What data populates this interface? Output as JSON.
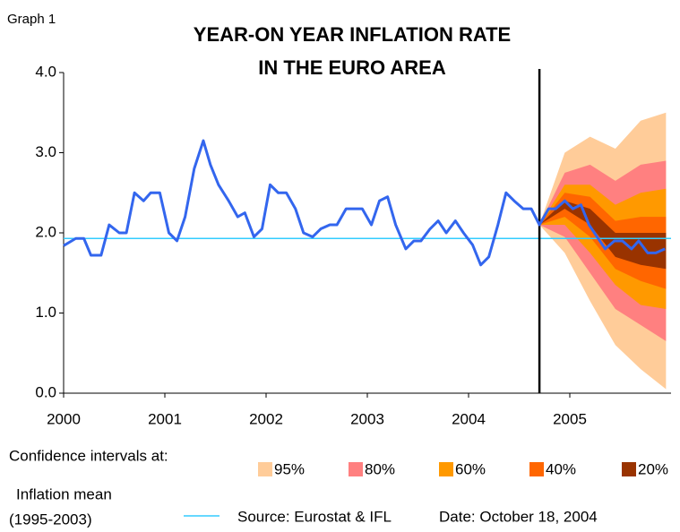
{
  "chart_data": {
    "type": "line",
    "label": "Graph 1",
    "title": [
      "YEAR-ON YEAR INFLATION RATE",
      "IN THE EURO AREA"
    ],
    "xlim": [
      2000,
      2006
    ],
    "xticks": [
      2000,
      2001,
      2002,
      2003,
      2004,
      2005
    ],
    "ylim": [
      0,
      4
    ],
    "yticks": [
      {
        "value": 0,
        "label": "0.0"
      },
      {
        "value": 1,
        "label": "1.0"
      },
      {
        "value": 2,
        "label": "2.0"
      },
      {
        "value": 3,
        "label": "3.0"
      },
      {
        "value": 4,
        "label": "4.0"
      }
    ],
    "x": [
      2000.0,
      2000.12,
      2000.2,
      2000.27,
      2000.37,
      2000.45,
      2000.55,
      2000.62,
      2000.7,
      2000.79,
      2000.86,
      2000.95,
      2001.04,
      2001.12,
      2001.2,
      2001.29,
      2001.38,
      2001.45,
      2001.53,
      2001.63,
      2001.72,
      2001.79,
      2001.88,
      2001.96,
      2002.04,
      2002.12,
      2002.2,
      2002.29,
      2002.37,
      2002.46,
      2002.54,
      2002.63,
      2002.7,
      2002.79,
      2002.87,
      2002.95,
      2003.04,
      2003.12,
      2003.2,
      2003.28,
      2003.38,
      2003.46,
      2003.53,
      2003.62,
      2003.7,
      2003.78,
      2003.87,
      2003.95,
      2004.04,
      2004.12,
      2004.2,
      2004.29,
      2004.37,
      2004.45,
      2004.54,
      2004.62,
      2004.7,
      2004.79,
      2004.86,
      2004.95,
      2005.03,
      2005.11,
      2005.19,
      2005.27,
      2005.35,
      2005.44,
      2005.52,
      2005.61,
      2005.68,
      2005.77,
      2005.85,
      2005.94
    ],
    "series": [
      {
        "color": "#3366ee",
        "values": [
          1.84,
          1.93,
          1.93,
          1.72,
          1.72,
          2.1,
          2.0,
          2.0,
          2.5,
          2.4,
          2.5,
          2.5,
          2.0,
          1.9,
          2.2,
          2.8,
          3.15,
          2.85,
          2.6,
          2.4,
          2.2,
          2.25,
          1.95,
          2.05,
          2.6,
          2.5,
          2.5,
          2.3,
          2.0,
          1.95,
          2.05,
          2.1,
          2.1,
          2.3,
          2.3,
          2.3,
          2.1,
          2.4,
          2.45,
          2.1,
          1.8,
          1.9,
          1.9,
          2.05,
          2.15,
          2.0,
          2.15,
          2.0,
          1.85,
          1.6,
          1.7,
          2.1,
          2.5,
          2.4,
          2.3,
          2.3,
          2.1,
          2.3,
          2.3,
          2.4,
          2.3,
          2.35,
          2.1,
          1.95,
          1.8,
          1.9,
          1.9,
          1.8,
          1.9,
          1.75,
          1.75,
          1.8
        ]
      }
    ],
    "forecast_start": 2004.7,
    "legend_title": "Confidence intervals at:",
    "fan_x": [
      2004.7,
      2004.95,
      2005.2,
      2005.45,
      2005.7,
      2005.95
    ],
    "bands": [
      {
        "name": "95%",
        "color": "#ffcc99",
        "upper": [
          2.1,
          3.0,
          3.2,
          3.05,
          3.4,
          3.5
        ],
        "lower": [
          2.1,
          1.75,
          1.15,
          0.6,
          0.3,
          0.05
        ]
      },
      {
        "name": "80%",
        "color": "#ff8080",
        "upper": [
          2.1,
          2.75,
          2.85,
          2.65,
          2.85,
          2.9
        ],
        "lower": [
          2.1,
          1.95,
          1.5,
          1.05,
          0.85,
          0.65
        ]
      },
      {
        "name": "60%",
        "color": "#ff9900",
        "upper": [
          2.1,
          2.6,
          2.6,
          2.35,
          2.5,
          2.55
        ],
        "lower": [
          2.1,
          2.1,
          1.75,
          1.35,
          1.1,
          1.05
        ]
      },
      {
        "name": "40%",
        "color": "#ff6600",
        "upper": [
          2.1,
          2.5,
          2.45,
          2.15,
          2.2,
          2.2
        ],
        "lower": [
          2.1,
          2.2,
          1.95,
          1.55,
          1.4,
          1.3
        ]
      },
      {
        "name": "20%",
        "color": "#993300",
        "upper": [
          2.1,
          2.4,
          2.3,
          2.0,
          2.0,
          2.0
        ],
        "lower": [
          2.1,
          2.3,
          2.1,
          1.7,
          1.6,
          1.55
        ]
      }
    ],
    "mean": {
      "label": [
        "Inflation mean",
        "(1995-2003)"
      ],
      "value": 1.93,
      "color": "#33ccff"
    },
    "source": "Source: Eurostat & IFL",
    "date": "Date: October 18, 2004"
  }
}
